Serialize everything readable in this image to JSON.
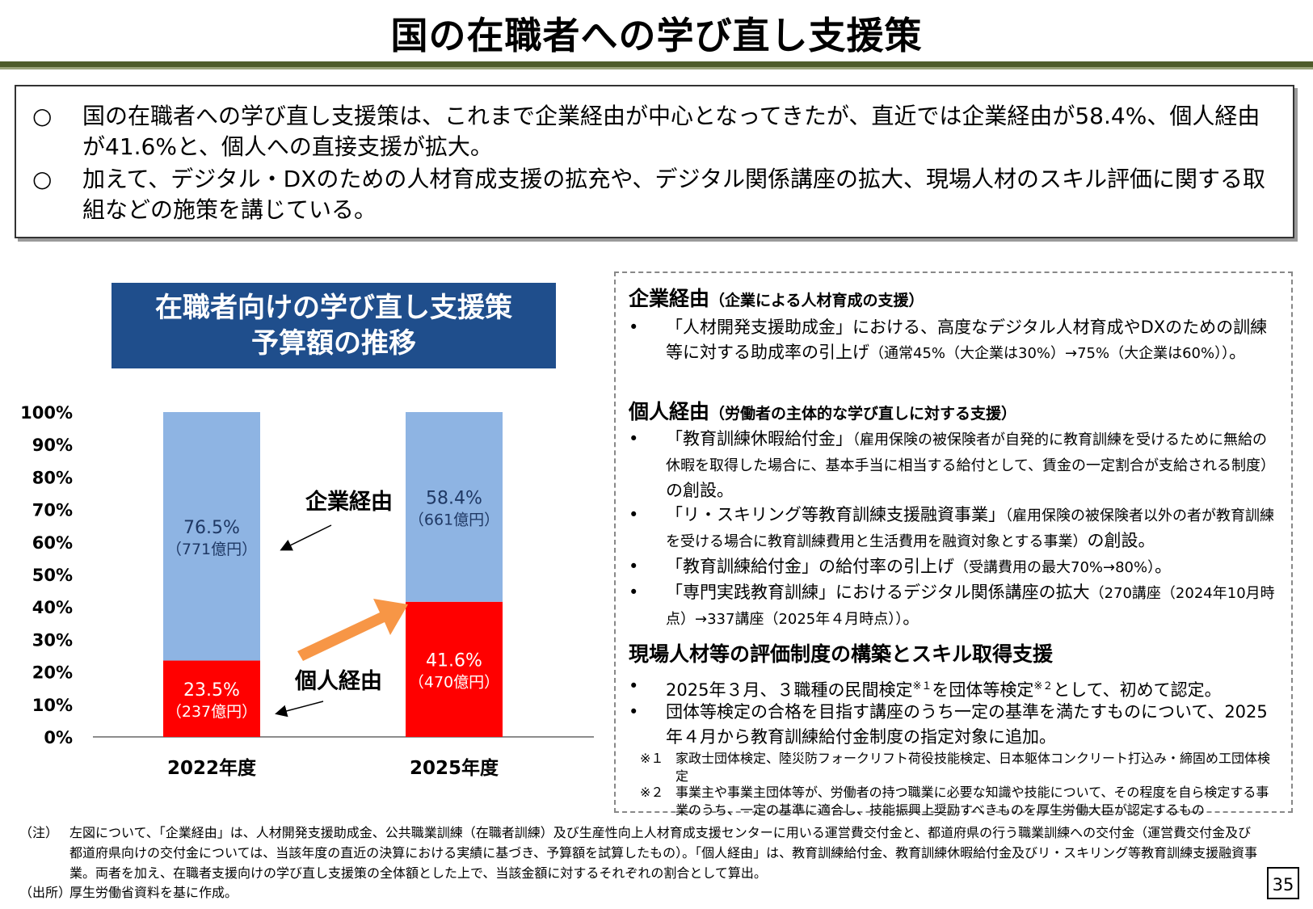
{
  "title": "国の在職者への学び直し支援策",
  "summary": [
    {
      "mark": "○",
      "text": "国の在職者への学び直し支援策は、これまで企業経由が中心となってきたが、直近では企業経由が58.4%、個人経由が41.6%と、個人への直接支援が拡大。"
    },
    {
      "mark": "○",
      "text": "加えて、デジタル・DXのための人材育成支援の拡充や、デジタル関係講座の拡大、現場人材のスキル評価に関する取組などの施策を講じている。"
    }
  ],
  "chart_title": {
    "line1": "在職者向けの学び直し支援策",
    "line2": "予算額の推移"
  },
  "chart_data": {
    "type": "bar",
    "stacked": true,
    "categories": [
      "2022年度",
      "2025年度"
    ],
    "ylim": [
      0,
      100
    ],
    "yticks": [
      "0%",
      "10%",
      "20%",
      "30%",
      "40%",
      "50%",
      "60%",
      "70%",
      "80%",
      "90%",
      "100%"
    ],
    "series": [
      {
        "name": "個人経由",
        "values": [
          23.5,
          41.6
        ],
        "labels": [
          "23.5%",
          "41.6%"
        ],
        "amounts": [
          "（237億円）",
          "（470億円）"
        ],
        "color": "#ff0000"
      },
      {
        "name": "企業経由",
        "values": [
          76.5,
          58.4
        ],
        "labels": [
          "76.5%",
          "58.4%"
        ],
        "amounts": [
          "（771億円）",
          "（661億円）"
        ],
        "color": "#8eb4e3"
      }
    ],
    "arrow_color": "#f79646"
  },
  "details": {
    "corp": {
      "head": "企業経由",
      "sub": "（企業による人材育成の支援）",
      "b1_main": "「人材開発支援助成金」における、高度なデジタル人材育成やDXのための訓練等に対する助成率の引上げ",
      "b1_small": "（通常45%（大企業は30%）→75%（大企業は60%））",
      "b1_end": "。"
    },
    "indiv": {
      "head": "個人経由",
      "sub": "（労働者の主体的な学び直しに対する支援）",
      "b1_main": "「教育訓練休暇給付金」",
      "b1_small": "（雇用保険の被保険者が自発的に教育訓練を受けるために無給の休暇を取得した場合に、基本手当に相当する給付として、賃金の一定割合が支給される制度）",
      "b1_end": "の創設。",
      "b2_main": "「リ・スキリング等教育訓練支援融資事業」",
      "b2_small": "（雇用保険の被保険者以外の者が教育訓練を受ける場合に教育訓練費用と生活費用を融資対象とする事業）",
      "b2_end": "の創設。",
      "b3_main": "「教育訓練給付金」の給付率の引上げ",
      "b3_small": "（受講費用の最大70%→80%）",
      "b3_end": "。",
      "b4_main": "「専門実践教育訓練」におけるデジタル関係講座の拡大",
      "b4_small": "（270講座（2024年10月時点）→337講座（2025年４月時点））",
      "b4_end": "。"
    },
    "field": {
      "head": "現場人材等の評価制度の構築とスキル取得支援",
      "b1_a": "2025年３月、３職種の民間検定",
      "b1_sup1": "※１",
      "b1_b": "を団体等検定",
      "b1_sup2": "※２",
      "b1_c": "として、初めて認定。",
      "b2": "団体等検定の合格を目指す講座のうち一定の基準を満たすものについて、2025年４月から教育訓練給付金制度の指定対象に追加。",
      "fn1_mark": "※１",
      "fn1": "家政士団体検定、陸災防フォークリフト荷役技能検定、日本躯体コンクリート打込み・締固め工団体検定",
      "fn2_mark": "※２",
      "fn2": "事業主や事業主団体等が、労働者の持つ職業に必要な知識や技能について、その程度を自ら検定する事業のうち、一定の基準に適合し、技能振興上奨励すべきものを厚生労働大臣が認定するもの"
    },
    "bullet_mark": "•"
  },
  "notes": {
    "note_label": "（注）",
    "note_text": "左図について、「企業経由」は、人材開発支援助成金、公共職業訓練（在職者訓練）及び生産性向上人材育成支援センターに用いる運営費交付金と、都道府県の行う職業訓練への交付金（運営費交付金及び都道府県向けの交付金については、当該年度の直近の決算における実績に基づき、予算額を試算したもの）。「個人経由」は、教育訓練給付金、教育訓練休暇給付金及びリ・スキリング等教育訓練支援融資事業。両者を加え、在職者支援向けの学び直し支援策の全体額とした上で、当該金額に対するそれぞれの割合として算出。",
    "source_label": "（出所）",
    "source_text": "厚生労働省資料を基に作成。"
  },
  "page_number": "35"
}
